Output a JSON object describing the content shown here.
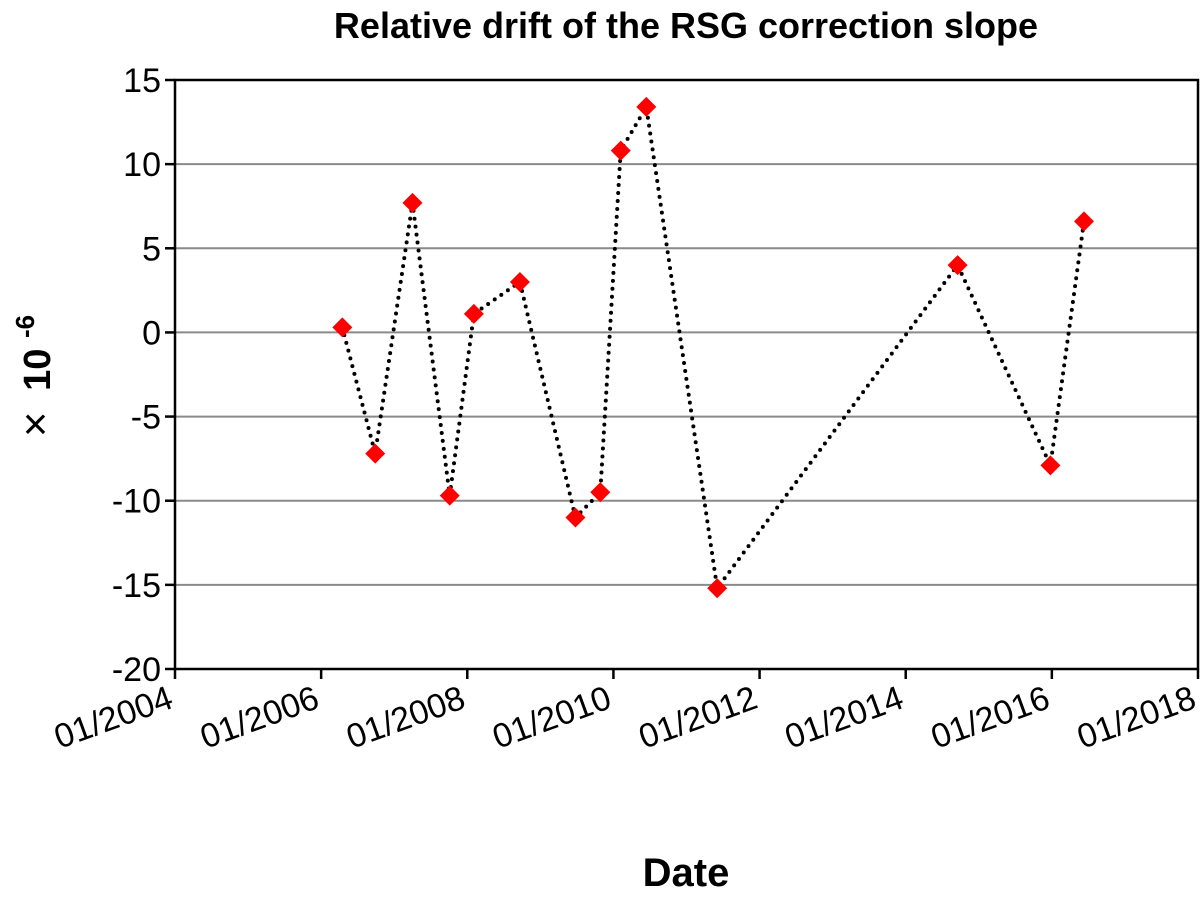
{
  "chart_data": {
    "type": "line",
    "title": "Relative drift of the RSG correction slope",
    "xlabel": "Date",
    "ylabel": {
      "symbol": "×",
      "base": "10",
      "exponent": "-6"
    },
    "xlim": [
      2004.0,
      2018.0
    ],
    "ylim": [
      -20,
      15
    ],
    "x_ticks": [
      {
        "value": 2004.0,
        "label": "01/2004"
      },
      {
        "value": 2006.0,
        "label": "01/2006"
      },
      {
        "value": 2008.0,
        "label": "01/2008"
      },
      {
        "value": 2010.0,
        "label": "01/2010"
      },
      {
        "value": 2012.0,
        "label": "01/2012"
      },
      {
        "value": 2014.0,
        "label": "01/2014"
      },
      {
        "value": 2016.0,
        "label": "01/2016"
      },
      {
        "value": 2018.0,
        "label": "01/2018"
      }
    ],
    "y_ticks": [
      15,
      10,
      5,
      0,
      -5,
      -10,
      -15,
      -20
    ],
    "grid": "horizontal",
    "series": [
      {
        "name": "Relative drift",
        "marker": "diamond",
        "marker_color": "#ff0000",
        "line_style": "dotted",
        "line_color": "#000000",
        "points": [
          {
            "x": 2006.29,
            "y": 0.3
          },
          {
            "x": 2006.74,
            "y": -7.2
          },
          {
            "x": 2007.25,
            "y": 7.7
          },
          {
            "x": 2007.76,
            "y": -9.7
          },
          {
            "x": 2008.09,
            "y": 1.1
          },
          {
            "x": 2008.72,
            "y": 3.0
          },
          {
            "x": 2009.48,
            "y": -11.0
          },
          {
            "x": 2009.82,
            "y": -9.5
          },
          {
            "x": 2010.1,
            "y": 10.8
          },
          {
            "x": 2010.45,
            "y": 13.4
          },
          {
            "x": 2011.42,
            "y": -15.2
          },
          {
            "x": 2014.71,
            "y": 4.0
          },
          {
            "x": 2015.98,
            "y": -7.9
          },
          {
            "x": 2016.44,
            "y": 6.6
          }
        ]
      }
    ]
  }
}
